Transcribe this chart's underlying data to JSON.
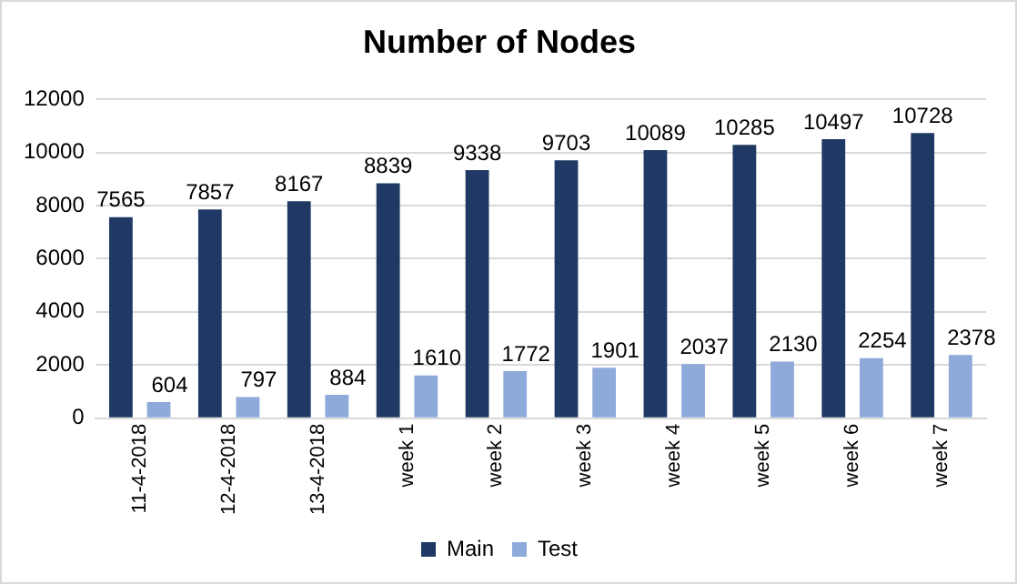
{
  "chart_data": {
    "type": "bar",
    "title": "Number of Nodes",
    "categories": [
      "11-4-2018",
      "12-4-2018",
      "13-4-2018",
      "week 1",
      "week 2",
      "week 3",
      "week 4",
      "week 5",
      "week 6",
      "week 7"
    ],
    "series": [
      {
        "name": "Main",
        "color": "#1f3864",
        "values": [
          7565,
          7857,
          8167,
          8839,
          9338,
          9703,
          10089,
          10285,
          10497,
          10728
        ]
      },
      {
        "name": "Test",
        "color": "#8eaadb",
        "values": [
          604,
          797,
          884,
          1610,
          1772,
          1901,
          2037,
          2130,
          2254,
          2378
        ]
      }
    ],
    "ylim": [
      0,
      12000
    ],
    "yticks": [
      0,
      2000,
      4000,
      6000,
      8000,
      10000,
      12000
    ],
    "grid": "y",
    "legend": "bottom",
    "data_labels": true
  }
}
